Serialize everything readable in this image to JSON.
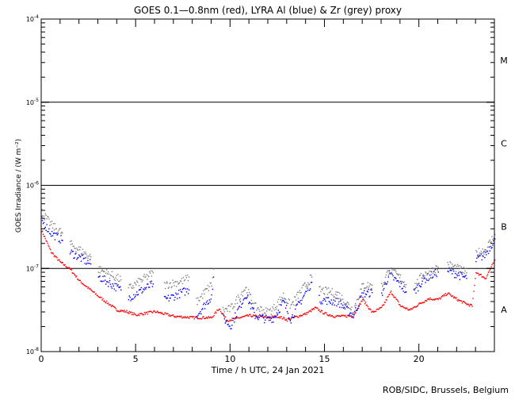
{
  "chart_data": {
    "type": "scatter",
    "title": "GOES 0.1—0.8nm (red), LYRA Al (blue) & Zr (grey) proxy",
    "xlabel": "Time / h UTC, 24 Jan 2021",
    "ylabel": "GOES Irradiance / (W m⁻²)",
    "xlim": [
      0,
      24
    ],
    "ylim": [
      1e-08,
      0.0001
    ],
    "yscale": "log",
    "x_ticks": [
      0,
      5,
      10,
      15,
      20
    ],
    "y_ticks": [
      {
        "value": 1e-08,
        "base": "10",
        "exp": "-8"
      },
      {
        "value": 1e-07,
        "base": "10",
        "exp": "-7"
      },
      {
        "value": 1e-06,
        "base": "10",
        "exp": "-6"
      },
      {
        "value": 1e-05,
        "base": "10",
        "exp": "-5"
      },
      {
        "value": 0.0001,
        "base": "10",
        "exp": "-4"
      }
    ],
    "flare_class_lines": [
      1e-07,
      1e-06,
      1e-05
    ],
    "flare_classes": [
      {
        "label": "A",
        "value": 3.2e-08
      },
      {
        "label": "B",
        "value": 3.2e-07
      },
      {
        "label": "C",
        "value": 3.2e-06
      },
      {
        "label": "M",
        "value": 3.2e-05
      }
    ],
    "series": [
      {
        "name": "GOES 0.1-0.8nm",
        "color": "#ff0000",
        "segments": [
          [
            [
              0,
              2.9e-07
            ],
            [
              0.5,
              1.6e-07
            ],
            [
              1,
              1.2e-07
            ],
            [
              1.5,
              1e-07
            ],
            [
              2,
              7.2e-08
            ],
            [
              3,
              4.7e-08
            ],
            [
              4,
              3.2e-08
            ],
            [
              4.5,
              3.07e-08
            ],
            [
              5,
              2.8e-08
            ],
            [
              6,
              3.07e-08
            ],
            [
              7,
              2.7e-08
            ],
            [
              8,
              2.6e-08
            ],
            [
              9,
              2.6e-08
            ],
            [
              9.4,
              3.35e-08
            ],
            [
              9.8,
              2.4e-08
            ],
            [
              10.5,
              2.6e-08
            ],
            [
              11,
              2.75e-08
            ],
            [
              12,
              2.6e-08
            ],
            [
              12.5,
              2.7e-08
            ],
            [
              13,
              2.45e-08
            ],
            [
              14,
              2.9e-08
            ],
            [
              14.5,
              3.4e-08
            ],
            [
              15,
              2.9e-08
            ],
            [
              15.5,
              2.7e-08
            ],
            [
              16,
              2.7e-08
            ],
            [
              16.5,
              2.75e-08
            ],
            [
              17,
              4.3e-08
            ],
            [
              17.5,
              3e-08
            ],
            [
              18,
              3.4e-08
            ],
            [
              18.5,
              5.3e-08
            ],
            [
              19,
              3.6e-08
            ],
            [
              19.5,
              3.2e-08
            ],
            [
              20,
              3.8e-08
            ],
            [
              20.5,
              4.4e-08
            ],
            [
              21,
              4.3e-08
            ],
            [
              21.5,
              5.1e-08
            ],
            [
              22,
              4.3e-08
            ],
            [
              22.5,
              3.8e-08
            ],
            [
              22.8,
              3.6e-08
            ],
            [
              23,
              9.2e-08
            ],
            [
              23.5,
              7.7e-08
            ],
            [
              24,
              1.28e-07
            ]
          ]
        ]
      },
      {
        "name": "LYRA Al proxy",
        "color": "#0000ff",
        "segments": [
          [
            [
              0,
              3.8e-07
            ],
            [
              0.5,
              2.7e-07
            ],
            [
              1.1,
              2.2e-07
            ]
          ],
          [
            [
              1.5,
              1.6e-07
            ],
            [
              2.6,
              1.15e-07
            ]
          ],
          [
            [
              3.0,
              8.1e-08
            ],
            [
              4.2,
              5.6e-08
            ]
          ],
          [
            [
              4.6,
              4.5e-08
            ],
            [
              5.9,
              6.6e-08
            ]
          ],
          [
            [
              6.5,
              4.2e-08
            ],
            [
              7.5,
              5.3e-08
            ],
            [
              7.8,
              5.6e-08
            ]
          ],
          [
            [
              8.2,
              2.75e-08
            ],
            [
              9.0,
              4.7e-08
            ],
            [
              9.1,
              8e-08
            ]
          ],
          [
            [
              9.6,
              2.6e-08
            ],
            [
              10.0,
              2.05e-08
            ],
            [
              10.8,
              5e-08
            ],
            [
              11.3,
              2.75e-08
            ],
            [
              12.0,
              2.45e-08
            ],
            [
              12.3,
              2.6e-08
            ],
            [
              12.8,
              4e-08
            ],
            [
              13.2,
              2.5e-08
            ],
            [
              13.5,
              3.4e-08
            ],
            [
              14.3,
              6.9e-08
            ]
          ],
          [
            [
              14.7,
              4.3e-08
            ],
            [
              15.7,
              4e-08
            ],
            [
              16.5,
              2.75e-08
            ],
            [
              17.0,
              5e-08
            ],
            [
              17.5,
              5.2e-08
            ]
          ],
          [
            [
              18.0,
              5e-08
            ],
            [
              18.4,
              8.6e-08
            ],
            [
              19.0,
              6.5e-08
            ],
            [
              19.3,
              5.3e-08
            ]
          ],
          [
            [
              19.7,
              5.2e-08
            ],
            [
              20.2,
              7.4e-08
            ],
            [
              21.0,
              9.2e-08
            ]
          ],
          [
            [
              21.5,
              9.6e-08
            ],
            [
              22.5,
              7.7e-08
            ]
          ],
          [
            [
              23.0,
              1.28e-07
            ],
            [
              23.5,
              1.5e-07
            ],
            [
              24.0,
              2.3e-07
            ]
          ]
        ]
      },
      {
        "name": "LYRA Zr proxy",
        "color": "#808080",
        "segments": [
          [
            [
              0,
              4.8e-07
            ],
            [
              0.5,
              3.4e-07
            ],
            [
              1.1,
              2.7e-07
            ]
          ],
          [
            [
              1.5,
              2e-07
            ],
            [
              2.6,
              1.4e-07
            ]
          ],
          [
            [
              3.0,
              1e-07
            ],
            [
              4.2,
              7.4e-08
            ]
          ],
          [
            [
              4.6,
              5.8e-08
            ],
            [
              5.9,
              9e-08
            ]
          ],
          [
            [
              6.5,
              6.4e-08
            ],
            [
              7.5,
              7.2e-08
            ],
            [
              7.8,
              8e-08
            ]
          ],
          [
            [
              8.2,
              4e-08
            ],
            [
              9.0,
              6.6e-08
            ],
            [
              9.1,
              1e-07
            ]
          ],
          [
            [
              9.6,
              3.2e-08
            ],
            [
              10.0,
              3.3e-08
            ],
            [
              10.8,
              6e-08
            ],
            [
              11.3,
              3.5e-08
            ],
            [
              12.0,
              3e-08
            ],
            [
              12.3,
              3.4e-08
            ],
            [
              12.8,
              4.8e-08
            ],
            [
              13.2,
              3.6e-08
            ],
            [
              13.5,
              4.6e-08
            ],
            [
              14.3,
              8e-08
            ]
          ],
          [
            [
              14.7,
              5.6e-08
            ],
            [
              15.7,
              5e-08
            ],
            [
              16.5,
              3.2e-08
            ],
            [
              17.0,
              6.3e-08
            ],
            [
              17.5,
              6.4e-08
            ]
          ],
          [
            [
              18.0,
              6.2e-08
            ],
            [
              18.4,
              9.8e-08
            ],
            [
              19.0,
              7.8e-08
            ],
            [
              19.3,
              6.5e-08
            ]
          ],
          [
            [
              19.7,
              6e-08
            ],
            [
              20.2,
              8.6e-08
            ],
            [
              21.0,
              1.05e-07
            ]
          ],
          [
            [
              21.5,
              1.15e-07
            ],
            [
              22.5,
              9e-08
            ]
          ],
          [
            [
              23.0,
              1.55e-07
            ],
            [
              23.5,
              1.7e-07
            ],
            [
              24.0,
              2.6e-07
            ]
          ]
        ]
      }
    ]
  },
  "footer": "ROB/SIDC, Brussels, Belgium"
}
